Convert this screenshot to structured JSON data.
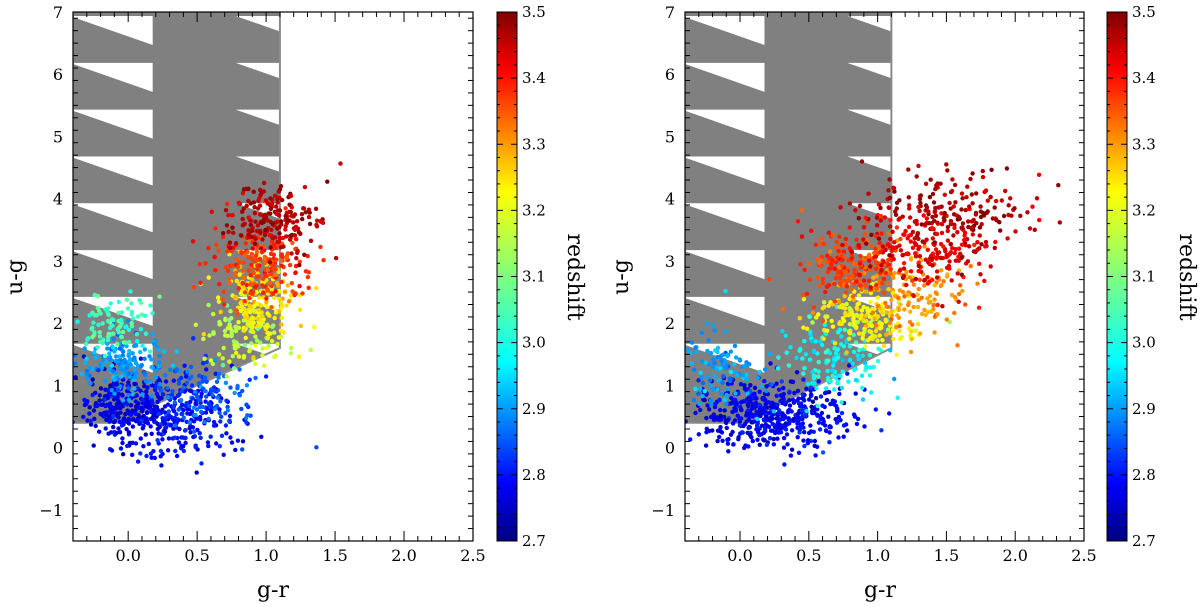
{
  "chart_data": [
    {
      "type": "scatter",
      "panel": "left",
      "xlabel": "g-r",
      "ylabel": "u-g",
      "xlim": [
        -0.4,
        2.5
      ],
      "ylim": [
        -1.5,
        7
      ],
      "xticks": [
        0.0,
        0.5,
        1.0,
        1.5,
        2.0,
        2.5
      ],
      "yticks": [
        -1,
        0,
        1,
        2,
        3,
        4,
        5,
        6,
        7
      ],
      "colorbar": {
        "label": "redshift",
        "range": [
          2.7,
          3.5
        ],
        "ticks": [
          2.7,
          2.8,
          2.9,
          3.0,
          3.1,
          3.2,
          3.3,
          3.4,
          3.5
        ],
        "colormap": "jet"
      },
      "selection_boundary": [
        [
          -0.4,
          0.4
        ],
        [
          0.0,
          0.4
        ],
        [
          0.2,
          0.7
        ],
        [
          1.1,
          1.6
        ],
        [
          1.1,
          7.0
        ]
      ],
      "clusters": [
        {
          "cx": 0.0,
          "cy": 0.65,
          "sx": 0.18,
          "sy": 0.28,
          "z": 2.78,
          "n": 260
        },
        {
          "cx": 0.35,
          "cy": 0.45,
          "sx": 0.22,
          "sy": 0.28,
          "z": 2.8,
          "n": 240
        },
        {
          "cx": 0.55,
          "cy": 0.85,
          "sx": 0.18,
          "sy": 0.3,
          "z": 2.87,
          "n": 120
        },
        {
          "cx": -0.05,
          "cy": 1.35,
          "sx": 0.16,
          "sy": 0.25,
          "z": 2.92,
          "n": 170
        },
        {
          "cx": -0.1,
          "cy": 2.0,
          "sx": 0.12,
          "sy": 0.2,
          "z": 3.05,
          "n": 90
        },
        {
          "cx": 0.85,
          "cy": 1.85,
          "sx": 0.14,
          "sy": 0.3,
          "z": 3.15,
          "n": 130
        },
        {
          "cx": 0.95,
          "cy": 2.35,
          "sx": 0.15,
          "sy": 0.3,
          "z": 3.22,
          "n": 150
        },
        {
          "cx": 0.95,
          "cy": 2.95,
          "sx": 0.18,
          "sy": 0.3,
          "z": 3.36,
          "n": 200
        },
        {
          "cx": 1.05,
          "cy": 3.65,
          "sx": 0.17,
          "sy": 0.32,
          "z": 3.46,
          "n": 200
        }
      ]
    },
    {
      "type": "scatter",
      "panel": "right",
      "xlabel": "g-r",
      "ylabel": "u-g",
      "xlim": [
        -0.4,
        2.5
      ],
      "ylim": [
        -1.5,
        7
      ],
      "xticks": [
        0.0,
        0.5,
        1.0,
        1.5,
        2.0,
        2.5
      ],
      "yticks": [
        -1,
        0,
        1,
        2,
        3,
        4,
        5,
        6,
        7
      ],
      "colorbar": {
        "label": "redshift",
        "range": [
          2.7,
          3.5
        ],
        "ticks": [
          2.7,
          2.8,
          2.9,
          3.0,
          3.1,
          3.2,
          3.3,
          3.4,
          3.5
        ],
        "colormap": "jet"
      },
      "selection_boundary": [
        [
          -0.4,
          0.4
        ],
        [
          0.05,
          0.4
        ],
        [
          0.2,
          0.6
        ],
        [
          1.1,
          1.6
        ],
        [
          1.1,
          7.0
        ]
      ],
      "clusters": [
        {
          "cx": 0.1,
          "cy": 0.5,
          "sx": 0.25,
          "sy": 0.25,
          "z": 2.78,
          "n": 280
        },
        {
          "cx": 0.45,
          "cy": 0.55,
          "sx": 0.25,
          "sy": 0.3,
          "z": 2.8,
          "n": 200
        },
        {
          "cx": -0.15,
          "cy": 1.3,
          "sx": 0.14,
          "sy": 0.3,
          "z": 2.92,
          "n": 110
        },
        {
          "cx": 0.7,
          "cy": 1.4,
          "sx": 0.2,
          "sy": 0.3,
          "z": 3.0,
          "n": 140
        },
        {
          "cx": 0.9,
          "cy": 2.1,
          "sx": 0.2,
          "sy": 0.28,
          "z": 3.2,
          "n": 180
        },
        {
          "cx": 1.25,
          "cy": 2.4,
          "sx": 0.22,
          "sy": 0.35,
          "z": 3.28,
          "n": 140
        },
        {
          "cx": 0.85,
          "cy": 2.9,
          "sx": 0.2,
          "sy": 0.28,
          "z": 3.35,
          "n": 200
        },
        {
          "cx": 1.35,
          "cy": 3.2,
          "sx": 0.28,
          "sy": 0.35,
          "z": 3.42,
          "n": 220
        },
        {
          "cx": 1.5,
          "cy": 3.8,
          "sx": 0.3,
          "sy": 0.3,
          "z": 3.47,
          "n": 170
        }
      ]
    }
  ]
}
